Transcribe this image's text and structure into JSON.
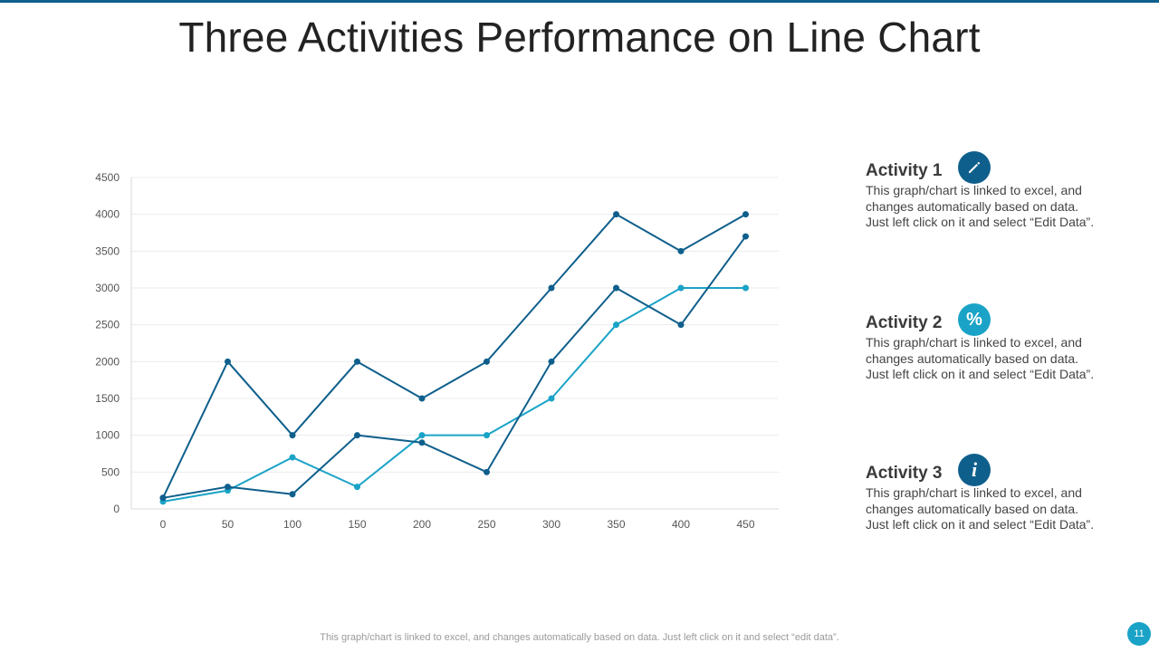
{
  "slide": {
    "title": "Three Activities Performance on Line Chart",
    "footer": "This graph/chart is linked to excel,  and changes automatically based on data. Just left click on it and select “edit data”.",
    "page_number": "11"
  },
  "activities": [
    {
      "title": "Activity 1",
      "icon": "pencil-icon",
      "color": "#0f5f8c",
      "desc_lines": [
        "This graph/chart is linked to excel, and",
        "changes automatically based on data.",
        "Just left click on it and select “Edit Data”."
      ]
    },
    {
      "title": "Activity 2",
      "icon": "percent-icon",
      "color": "#1aa3c7",
      "desc_lines": [
        "This graph/chart is linked to excel, and",
        "changes automatically based on data.",
        "Just left click on it and select “Edit Data”."
      ]
    },
    {
      "title": "Activity 3",
      "icon": "info-icon",
      "color": "#0f5f8c",
      "desc_lines": [
        "This graph/chart is linked to excel, and",
        "changes automatically based on data.",
        "Just left click on it and select “Edit Data”."
      ]
    }
  ],
  "chart_data": {
    "type": "line",
    "title": "",
    "xlabel": "",
    "ylabel": "",
    "x": [
      0,
      50,
      100,
      150,
      200,
      250,
      300,
      350,
      400,
      450
    ],
    "yticks": [
      0,
      500,
      1000,
      1500,
      2000,
      2500,
      3000,
      3500,
      4000,
      4500
    ],
    "ylim": [
      0,
      4500
    ],
    "grid": true,
    "series": [
      {
        "name": "Activity 1",
        "color": "#0f5f8c",
        "values": [
          150,
          2000,
          1000,
          2000,
          1500,
          2000,
          3000,
          4000,
          3500,
          4000
        ]
      },
      {
        "name": "Activity 2",
        "color": "#1aa3c7",
        "values": [
          100,
          250,
          700,
          300,
          1000,
          1000,
          1500,
          2500,
          3000,
          3000
        ]
      },
      {
        "name": "Activity 3",
        "color": "#0f5f8c",
        "values": [
          150,
          300,
          200,
          1000,
          900,
          500,
          2000,
          3000,
          2500,
          3700
        ]
      }
    ]
  }
}
